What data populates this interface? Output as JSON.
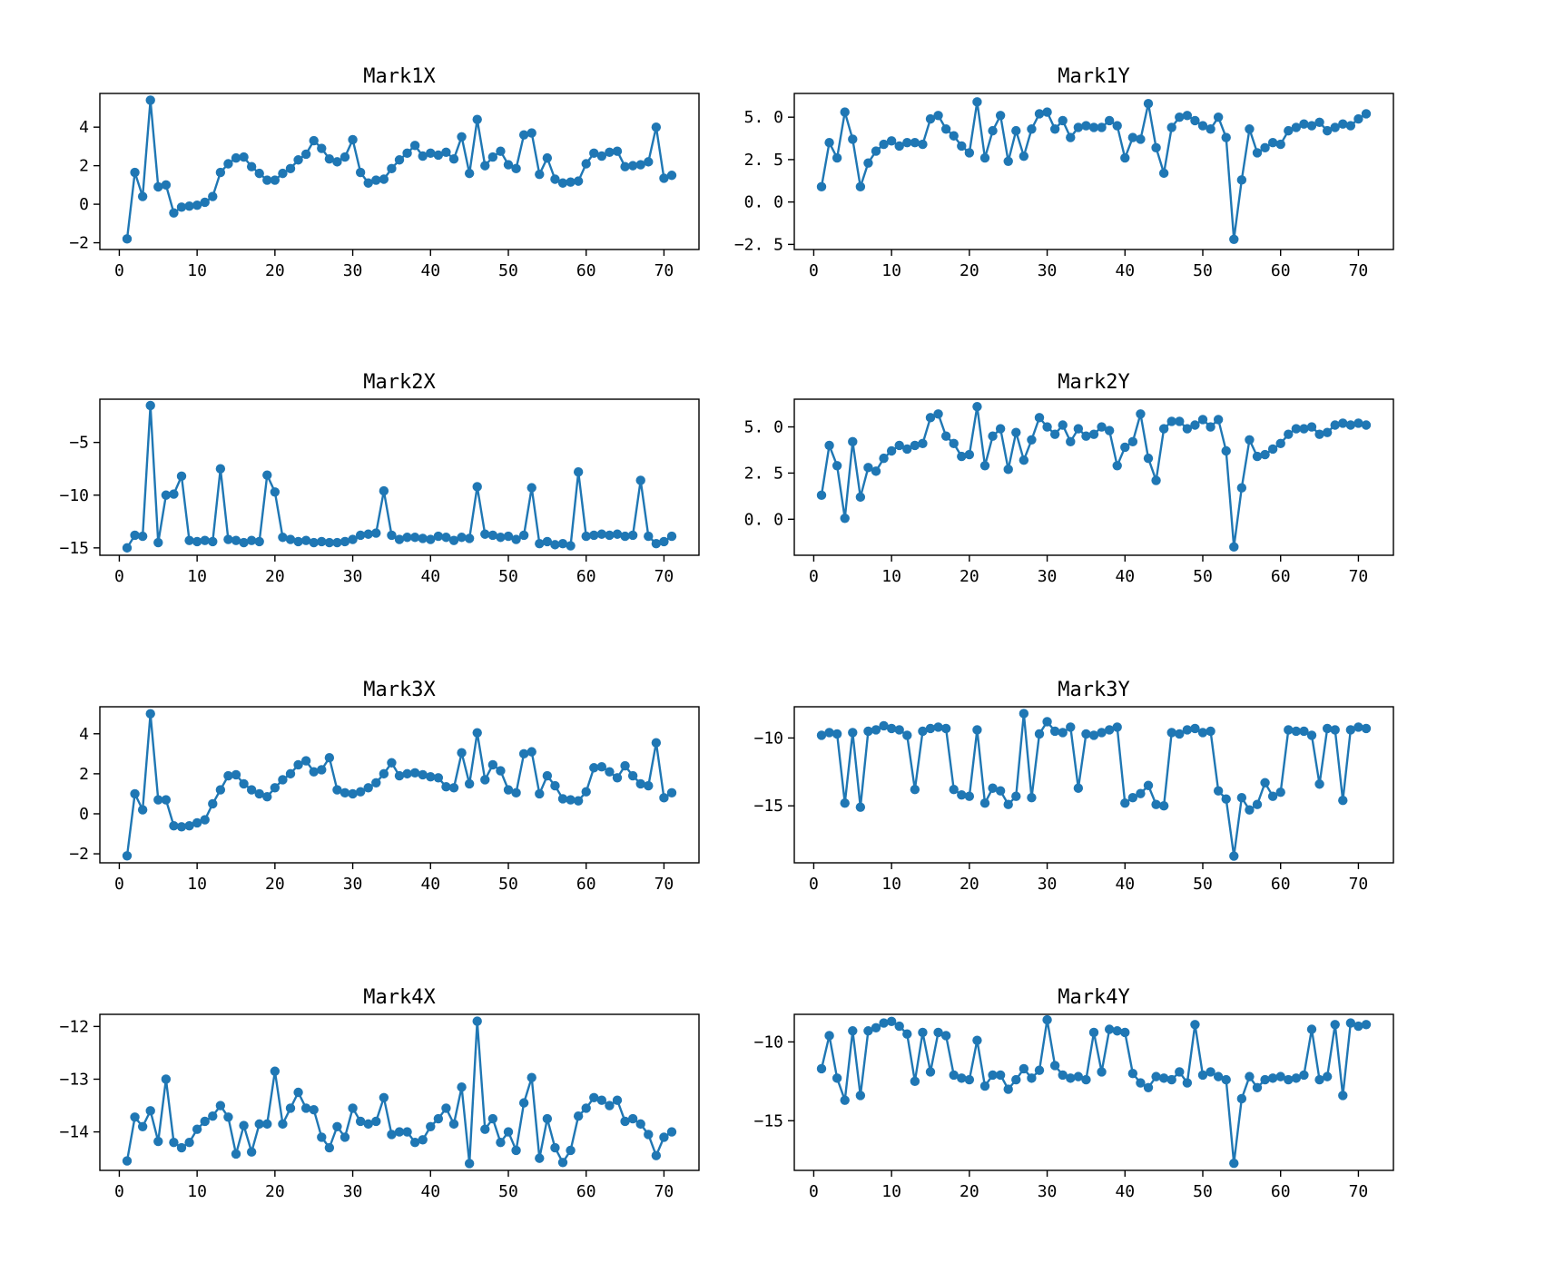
{
  "figure": {
    "background": "#ffffff",
    "accent_color": "#1f77b4",
    "layout": "4 rows x 2 columns of line subplots, grid off, no legend"
  },
  "x": [
    1,
    2,
    3,
    4,
    5,
    6,
    7,
    8,
    9,
    10,
    11,
    12,
    13,
    14,
    15,
    16,
    17,
    18,
    19,
    20,
    21,
    22,
    23,
    24,
    25,
    26,
    27,
    28,
    29,
    30,
    31,
    32,
    33,
    34,
    35,
    36,
    37,
    38,
    39,
    40,
    41,
    42,
    43,
    44,
    45,
    46,
    47,
    48,
    49,
    50,
    51,
    52,
    53,
    54,
    55,
    56,
    57,
    58,
    59,
    60,
    61,
    62,
    63,
    64,
    65,
    66,
    67,
    68,
    69,
    70,
    71
  ],
  "chart_data": [
    {
      "type": "line",
      "title": "Mark1X",
      "values": [
        -1.8,
        1.65,
        0.4,
        5.4,
        0.9,
        1.0,
        -0.45,
        -0.15,
        -0.1,
        -0.05,
        0.1,
        0.4,
        1.65,
        2.1,
        2.4,
        2.45,
        1.95,
        1.6,
        1.25,
        1.25,
        1.6,
        1.85,
        2.3,
        2.6,
        3.3,
        2.9,
        2.35,
        2.2,
        2.45,
        3.35,
        1.65,
        1.1,
        1.25,
        1.3,
        1.85,
        2.3,
        2.65,
        3.05,
        2.5,
        2.65,
        2.55,
        2.7,
        2.35,
        3.5,
        1.6,
        4.4,
        2.0,
        2.45,
        2.75,
        2.05,
        1.85,
        3.6,
        3.7,
        1.55,
        2.4,
        1.3,
        1.1,
        1.15,
        1.2,
        2.1,
        2.65,
        2.5,
        2.7,
        2.75,
        1.95,
        2.0,
        2.05,
        2.2,
        4.0,
        1.35,
        1.5
      ],
      "xlim": [
        -2.5,
        74.5
      ],
      "ylim": [
        -2.35,
        5.75
      ],
      "xticks": [
        0,
        10,
        20,
        30,
        40,
        50,
        60,
        70
      ],
      "xtick_labels": [
        "0",
        "10",
        "20",
        "30",
        "40",
        "50",
        "60",
        "70"
      ],
      "yticks": [
        -2,
        0,
        2,
        4
      ],
      "ytick_labels": [
        "−2",
        "0",
        "2",
        "4"
      ],
      "line_color": "#1f77b4",
      "marker": "o",
      "grid": false
    },
    {
      "type": "line",
      "title": "Mark1Y",
      "values": [
        0.9,
        3.5,
        2.6,
        5.3,
        3.7,
        0.9,
        2.3,
        3.0,
        3.4,
        3.6,
        3.3,
        3.5,
        3.5,
        3.4,
        4.9,
        5.1,
        4.3,
        3.9,
        3.3,
        2.9,
        5.9,
        2.6,
        4.2,
        5.1,
        2.4,
        4.2,
        2.7,
        4.3,
        5.2,
        5.3,
        4.3,
        4.8,
        3.8,
        4.4,
        4.5,
        4.4,
        4.4,
        4.8,
        4.5,
        2.6,
        3.8,
        3.7,
        5.8,
        3.2,
        1.7,
        4.4,
        5.0,
        5.1,
        4.8,
        4.5,
        4.3,
        5.0,
        3.8,
        -2.2,
        1.3,
        4.3,
        2.9,
        3.2,
        3.5,
        3.4,
        4.2,
        4.4,
        4.6,
        4.5,
        4.7,
        4.2,
        4.4,
        4.6,
        4.5,
        4.9,
        5.2
      ],
      "xlim": [
        -2.5,
        74.5
      ],
      "ylim": [
        -2.8,
        6.4
      ],
      "xticks": [
        0,
        10,
        20,
        30,
        40,
        50,
        60,
        70
      ],
      "xtick_labels": [
        "0",
        "10",
        "20",
        "30",
        "40",
        "50",
        "60",
        "70"
      ],
      "yticks": [
        -2.5,
        0,
        2.5,
        5
      ],
      "ytick_labels": [
        "−2. 5",
        "0. 0",
        "2. 5",
        "5. 0"
      ],
      "line_color": "#1f77b4",
      "marker": "o",
      "grid": false
    },
    {
      "type": "line",
      "title": "Mark2X",
      "values": [
        -15.0,
        -13.8,
        -13.9,
        -1.5,
        -14.5,
        -10.0,
        -9.9,
        -8.2,
        -14.3,
        -14.4,
        -14.3,
        -14.4,
        -7.5,
        -14.2,
        -14.3,
        -14.5,
        -14.3,
        -14.4,
        -8.1,
        -9.7,
        -14.0,
        -14.2,
        -14.4,
        -14.3,
        -14.5,
        -14.4,
        -14.5,
        -14.5,
        -14.4,
        -14.2,
        -13.8,
        -13.7,
        -13.6,
        -9.6,
        -13.8,
        -14.2,
        -14.0,
        -14.0,
        -14.1,
        -14.2,
        -13.9,
        -14.0,
        -14.3,
        -14.0,
        -14.1,
        -9.2,
        -13.7,
        -13.8,
        -14.0,
        -13.9,
        -14.2,
        -13.8,
        -9.3,
        -14.6,
        -14.4,
        -14.7,
        -14.6,
        -14.8,
        -7.8,
        -13.9,
        -13.8,
        -13.7,
        -13.8,
        -13.7,
        -13.9,
        -13.8,
        -8.6,
        -13.9,
        -14.6,
        -14.4,
        -13.9
      ],
      "xlim": [
        -2.5,
        74.5
      ],
      "ylim": [
        -15.7,
        -0.9
      ],
      "xticks": [
        0,
        10,
        20,
        30,
        40,
        50,
        60,
        70
      ],
      "xtick_labels": [
        "0",
        "10",
        "20",
        "30",
        "40",
        "50",
        "60",
        "70"
      ],
      "yticks": [
        -15,
        -10,
        -5
      ],
      "ytick_labels": [
        "−15",
        "−10",
        "−5"
      ],
      "line_color": "#1f77b4",
      "marker": "o",
      "grid": false
    },
    {
      "type": "line",
      "title": "Mark2Y",
      "values": [
        1.3,
        4.0,
        2.9,
        0.05,
        4.2,
        1.2,
        2.8,
        2.6,
        3.3,
        3.7,
        4.0,
        3.8,
        4.0,
        4.1,
        5.5,
        5.7,
        4.5,
        4.1,
        3.4,
        3.5,
        6.1,
        2.9,
        4.5,
        4.9,
        2.7,
        4.7,
        3.2,
        4.3,
        5.5,
        5.0,
        4.6,
        5.1,
        4.2,
        4.9,
        4.5,
        4.6,
        5.0,
        4.8,
        2.9,
        3.9,
        4.2,
        5.7,
        3.3,
        2.1,
        4.9,
        5.3,
        5.3,
        4.9,
        5.1,
        5.4,
        5.0,
        5.4,
        3.7,
        -1.5,
        1.7,
        4.3,
        3.4,
        3.5,
        3.8,
        4.1,
        4.6,
        4.9,
        4.9,
        5.0,
        4.6,
        4.7,
        5.1,
        5.2,
        5.1,
        5.2,
        5.1
      ],
      "xlim": [
        -2.5,
        74.5
      ],
      "ylim": [
        -1.95,
        6.5
      ],
      "xticks": [
        0,
        10,
        20,
        30,
        40,
        50,
        60,
        70
      ],
      "xtick_labels": [
        "0",
        "10",
        "20",
        "30",
        "40",
        "50",
        "60",
        "70"
      ],
      "yticks": [
        0,
        2.5,
        5
      ],
      "ytick_labels": [
        "0. 0",
        "2. 5",
        "5. 0"
      ],
      "line_color": "#1f77b4",
      "marker": "o",
      "grid": false
    },
    {
      "type": "line",
      "title": "Mark3X",
      "values": [
        -2.1,
        1.0,
        0.2,
        5.0,
        0.7,
        0.7,
        -0.6,
        -0.65,
        -0.6,
        -0.45,
        -0.3,
        0.5,
        1.2,
        1.9,
        1.95,
        1.5,
        1.2,
        1.0,
        0.85,
        1.3,
        1.7,
        2.0,
        2.45,
        2.65,
        2.1,
        2.2,
        2.8,
        1.2,
        1.05,
        1.0,
        1.1,
        1.3,
        1.55,
        2.0,
        2.55,
        1.9,
        2.0,
        2.05,
        1.95,
        1.85,
        1.8,
        1.35,
        1.3,
        3.05,
        1.5,
        4.05,
        1.7,
        2.45,
        2.15,
        1.2,
        1.05,
        3.0,
        3.1,
        1.0,
        1.9,
        1.4,
        0.75,
        0.7,
        0.65,
        1.1,
        2.3,
        2.35,
        2.1,
        1.8,
        2.4,
        1.9,
        1.5,
        1.4,
        3.55,
        0.8,
        1.05
      ],
      "xlim": [
        -2.5,
        74.5
      ],
      "ylim": [
        -2.45,
        5.35
      ],
      "xticks": [
        0,
        10,
        20,
        30,
        40,
        50,
        60,
        70
      ],
      "xtick_labels": [
        "0",
        "10",
        "20",
        "30",
        "40",
        "50",
        "60",
        "70"
      ],
      "yticks": [
        -2,
        0,
        2,
        4
      ],
      "ytick_labels": [
        "−2",
        "0",
        "2",
        "4"
      ],
      "line_color": "#1f77b4",
      "marker": "o",
      "grid": false
    },
    {
      "type": "line",
      "title": "Mark3Y",
      "values": [
        -9.8,
        -9.6,
        -9.7,
        -14.8,
        -9.6,
        -15.1,
        -9.5,
        -9.4,
        -9.1,
        -9.3,
        -9.4,
        -9.8,
        -13.8,
        -9.5,
        -9.3,
        -9.2,
        -9.3,
        -13.8,
        -14.2,
        -14.3,
        -9.4,
        -14.8,
        -13.7,
        -13.9,
        -14.9,
        -14.3,
        -8.2,
        -14.4,
        -9.7,
        -8.8,
        -9.5,
        -9.6,
        -9.2,
        -13.7,
        -9.7,
        -9.8,
        -9.6,
        -9.4,
        -9.2,
        -14.8,
        -14.4,
        -14.1,
        -13.5,
        -14.9,
        -15.0,
        -9.6,
        -9.7,
        -9.4,
        -9.3,
        -9.6,
        -9.5,
        -13.9,
        -14.5,
        -18.7,
        -14.4,
        -15.3,
        -14.9,
        -13.3,
        -14.3,
        -14.0,
        -9.4,
        -9.5,
        -9.5,
        -9.8,
        -13.4,
        -9.3,
        -9.4,
        -14.6,
        -9.4,
        -9.2,
        -9.3
      ],
      "xlim": [
        -2.5,
        74.5
      ],
      "ylim": [
        -19.2,
        -7.7
      ],
      "xticks": [
        0,
        10,
        20,
        30,
        40,
        50,
        60,
        70
      ],
      "xtick_labels": [
        "0",
        "10",
        "20",
        "30",
        "40",
        "50",
        "60",
        "70"
      ],
      "yticks": [
        -15,
        -10
      ],
      "ytick_labels": [
        "−15",
        "−10"
      ],
      "line_color": "#1f77b4",
      "marker": "o",
      "grid": false
    },
    {
      "type": "line",
      "title": "Mark4X",
      "values": [
        -14.55,
        -13.72,
        -13.9,
        -13.6,
        -14.18,
        -13.0,
        -14.2,
        -14.3,
        -14.2,
        -13.95,
        -13.8,
        -13.7,
        -13.5,
        -13.72,
        -14.42,
        -13.88,
        -14.38,
        -13.85,
        -13.85,
        -12.85,
        -13.85,
        -13.55,
        -13.25,
        -13.55,
        -13.58,
        -14.1,
        -14.3,
        -13.9,
        -14.1,
        -13.55,
        -13.8,
        -13.85,
        -13.8,
        -13.35,
        -14.05,
        -14.0,
        -14.0,
        -14.2,
        -14.15,
        -13.9,
        -13.75,
        -13.55,
        -13.85,
        -13.15,
        -14.6,
        -11.9,
        -13.95,
        -13.75,
        -14.2,
        -14.0,
        -14.35,
        -13.45,
        -12.97,
        -14.5,
        -13.75,
        -14.3,
        -14.58,
        -14.35,
        -13.7,
        -13.55,
        -13.35,
        -13.4,
        -13.5,
        -13.4,
        -13.8,
        -13.75,
        -13.85,
        -14.05,
        -14.45,
        -14.1,
        -14.0
      ],
      "xlim": [
        -2.5,
        74.5
      ],
      "ylim": [
        -14.73,
        -11.77
      ],
      "xticks": [
        0,
        10,
        20,
        30,
        40,
        50,
        60,
        70
      ],
      "xtick_labels": [
        "0",
        "10",
        "20",
        "30",
        "40",
        "50",
        "60",
        "70"
      ],
      "yticks": [
        -14,
        -13,
        -12
      ],
      "ytick_labels": [
        "−14",
        "−13",
        "−12"
      ],
      "line_color": "#1f77b4",
      "marker": "o",
      "grid": false
    },
    {
      "type": "line",
      "title": "Mark4Y",
      "values": [
        -11.7,
        -9.6,
        -12.3,
        -13.7,
        -9.3,
        -13.4,
        -9.3,
        -9.1,
        -8.8,
        -8.7,
        -9.0,
        -9.5,
        -12.5,
        -9.4,
        -11.9,
        -9.4,
        -9.6,
        -12.1,
        -12.3,
        -12.4,
        -9.9,
        -12.8,
        -12.1,
        -12.1,
        -13.0,
        -12.4,
        -11.7,
        -12.3,
        -11.8,
        -8.6,
        -11.5,
        -12.1,
        -12.3,
        -12.2,
        -12.4,
        -9.4,
        -11.9,
        -9.2,
        -9.3,
        -9.4,
        -12.0,
        -12.6,
        -12.9,
        -12.2,
        -12.3,
        -12.4,
        -11.9,
        -12.6,
        -8.9,
        -12.1,
        -11.9,
        -12.2,
        -12.4,
        -17.7,
        -13.6,
        -12.2,
        -12.9,
        -12.4,
        -12.3,
        -12.2,
        -12.4,
        -12.3,
        -12.1,
        -9.2,
        -12.4,
        -12.2,
        -8.9,
        -13.4,
        -8.8,
        -9.0,
        -8.9
      ],
      "xlim": [
        -2.5,
        74.5
      ],
      "ylim": [
        -18.15,
        -8.25
      ],
      "xticks": [
        0,
        10,
        20,
        30,
        40,
        50,
        60,
        70
      ],
      "xtick_labels": [
        "0",
        "10",
        "20",
        "30",
        "40",
        "50",
        "60",
        "70"
      ],
      "yticks": [
        -15,
        -10
      ],
      "ytick_labels": [
        "−15",
        "−10"
      ],
      "line_color": "#1f77b4",
      "marker": "o",
      "grid": false
    }
  ]
}
